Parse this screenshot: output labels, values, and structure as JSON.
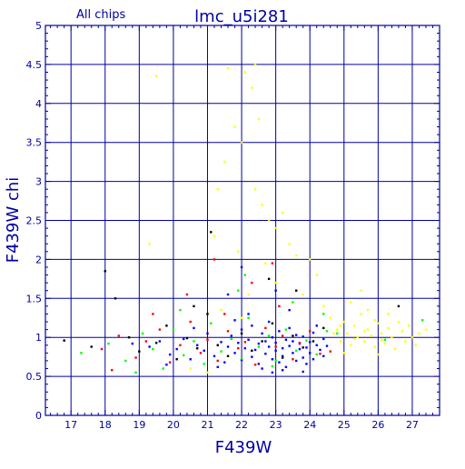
{
  "chart_data": {
    "type": "scatter",
    "title": "lmc_u5i281",
    "subtitle": "All chips",
    "xlabel": "F439W",
    "ylabel": "F439W chi",
    "xlim": [
      16.25,
      27.8
    ],
    "ylim": [
      0,
      5
    ],
    "xticks": [
      17,
      18,
      19,
      20,
      21,
      22,
      23,
      24,
      25,
      26,
      27
    ],
    "yticks": [
      0,
      0.5,
      1,
      1.5,
      2,
      2.5,
      3,
      3.5,
      4,
      4.5,
      5
    ],
    "ytick_labels": [
      "0",
      "0.5",
      "1",
      "1.5",
      "2",
      "2.5",
      "3",
      "3.5",
      "4",
      "4.5",
      "5"
    ],
    "grid": true,
    "series": [
      {
        "color": "#0000ff",
        "points": [
          [
            18.8,
            0.92
          ],
          [
            19.3,
            0.88
          ],
          [
            19.6,
            0.95
          ],
          [
            19.9,
            0.78
          ],
          [
            20.1,
            0.85
          ],
          [
            20.3,
            0.98
          ],
          [
            20.5,
            0.72
          ],
          [
            20.7,
            0.9
          ],
          [
            20.9,
            0.83
          ],
          [
            21.0,
            1.05
          ],
          [
            21.2,
            0.76
          ],
          [
            21.4,
            0.94
          ],
          [
            21.5,
            0.68
          ],
          [
            21.6,
            0.88
          ],
          [
            21.7,
            1.02
          ],
          [
            21.8,
            0.8
          ],
          [
            21.9,
            0.93
          ],
          [
            22.0,
            0.71
          ],
          [
            22.0,
            1.1
          ],
          [
            22.1,
            0.86
          ],
          [
            22.2,
            0.97
          ],
          [
            22.3,
            0.75
          ],
          [
            22.3,
            1.15
          ],
          [
            22.4,
            0.84
          ],
          [
            22.5,
            0.92
          ],
          [
            22.5,
            0.66
          ],
          [
            22.6,
            1.05
          ],
          [
            22.7,
            0.79
          ],
          [
            22.7,
            0.95
          ],
          [
            22.8,
            0.88
          ],
          [
            22.8,
            1.2
          ],
          [
            22.9,
            0.72
          ],
          [
            22.9,
            1.0
          ],
          [
            23.0,
            0.83
          ],
          [
            23.0,
            0.93
          ],
          [
            23.1,
            0.68
          ],
          [
            23.1,
            1.08
          ],
          [
            23.2,
            0.86
          ],
          [
            23.2,
            0.76
          ],
          [
            23.3,
            0.97
          ],
          [
            23.3,
            0.62
          ],
          [
            23.4,
            0.89
          ],
          [
            23.4,
            1.12
          ],
          [
            23.5,
            0.8
          ],
          [
            23.5,
            0.95
          ],
          [
            23.6,
            0.7
          ],
          [
            23.6,
            1.03
          ],
          [
            23.7,
            0.85
          ],
          [
            23.7,
            0.92
          ],
          [
            23.8,
            0.74
          ],
          [
            23.8,
            1.01
          ],
          [
            23.9,
            0.87
          ],
          [
            23.9,
            0.66
          ],
          [
            24.0,
            0.94
          ],
          [
            24.0,
            0.8
          ],
          [
            24.1,
            1.06
          ],
          [
            24.1,
            0.72
          ],
          [
            24.2,
            0.9
          ],
          [
            24.3,
            0.84
          ],
          [
            24.4,
            0.98
          ],
          [
            24.4,
            0.76
          ],
          [
            24.5,
            0.89
          ],
          [
            22.6,
            0.6
          ],
          [
            23.2,
            0.58
          ],
          [
            23.8,
            0.56
          ],
          [
            22.2,
            1.3
          ],
          [
            23.4,
            1.35
          ],
          [
            21.8,
            1.22
          ],
          [
            24.2,
            1.15
          ],
          [
            22.9,
            0.55
          ],
          [
            20.6,
            1.12
          ],
          [
            19.8,
            0.65
          ],
          [
            21.3,
            0.62
          ],
          [
            23.0,
            1.6
          ],
          [
            22.0,
            1.9
          ],
          [
            21.6,
            1.55
          ]
        ]
      },
      {
        "color": "#00ff00",
        "points": [
          [
            17.3,
            0.8
          ],
          [
            18.1,
            0.92
          ],
          [
            18.6,
            0.7
          ],
          [
            19.1,
            1.05
          ],
          [
            19.4,
            0.85
          ],
          [
            19.7,
            0.6
          ],
          [
            20.0,
            1.1
          ],
          [
            20.3,
            0.77
          ],
          [
            20.6,
            0.95
          ],
          [
            20.9,
            0.66
          ],
          [
            21.1,
            1.18
          ],
          [
            21.4,
            0.82
          ],
          [
            21.7,
            0.98
          ],
          [
            22.0,
            0.73
          ],
          [
            22.2,
            1.25
          ],
          [
            22.5,
            0.88
          ],
          [
            22.8,
            1.02
          ],
          [
            23.0,
            0.7
          ],
          [
            23.3,
            1.1
          ],
          [
            23.6,
            0.83
          ],
          [
            23.9,
            0.96
          ],
          [
            24.2,
            0.78
          ],
          [
            24.5,
            1.08
          ],
          [
            22.1,
            1.8
          ],
          [
            23.5,
            1.45
          ],
          [
            20.2,
            1.35
          ],
          [
            21.9,
            1.6
          ],
          [
            18.9,
            0.55
          ],
          [
            24.4,
            1.3
          ],
          [
            22.9,
            0.63
          ],
          [
            24.8,
            1.05
          ],
          [
            26.2,
            0.97
          ],
          [
            27.3,
            1.22
          ]
        ]
      },
      {
        "color": "#ff0000",
        "points": [
          [
            17.9,
            0.85
          ],
          [
            18.4,
            1.02
          ],
          [
            18.9,
            0.74
          ],
          [
            19.2,
            0.95
          ],
          [
            19.6,
            1.1
          ],
          [
            19.9,
            0.68
          ],
          [
            20.2,
            0.9
          ],
          [
            20.5,
            1.2
          ],
          [
            20.8,
            0.8
          ],
          [
            21.0,
            0.97
          ],
          [
            21.3,
            0.7
          ],
          [
            21.6,
            1.08
          ],
          [
            21.9,
            0.86
          ],
          [
            22.1,
            0.94
          ],
          [
            22.4,
            0.65
          ],
          [
            22.7,
            1.12
          ],
          [
            23.0,
            0.88
          ],
          [
            23.2,
            1.02
          ],
          [
            23.5,
            0.72
          ],
          [
            23.7,
            0.93
          ],
          [
            24.0,
            1.08
          ],
          [
            24.3,
            0.79
          ],
          [
            22.3,
            1.7
          ],
          [
            23.1,
            1.4
          ],
          [
            21.5,
            1.3
          ],
          [
            20.4,
            1.55
          ],
          [
            18.2,
            0.58
          ],
          [
            19.4,
            1.3
          ],
          [
            24.6,
            0.82
          ],
          [
            22.9,
            1.95
          ],
          [
            21.2,
            2.0
          ]
        ]
      },
      {
        "color": "#000000",
        "points": [
          [
            16.8,
            0.96
          ],
          [
            17.6,
            0.88
          ],
          [
            18.3,
            1.5
          ],
          [
            18.0,
            1.85
          ],
          [
            18.7,
            1.0
          ],
          [
            19.0,
            0.82
          ],
          [
            19.5,
            0.93
          ],
          [
            19.8,
            1.15
          ],
          [
            20.1,
            0.72
          ],
          [
            20.4,
            0.99
          ],
          [
            20.7,
            0.86
          ],
          [
            21.0,
            1.3
          ],
          [
            21.3,
            0.9
          ],
          [
            21.6,
            0.76
          ],
          [
            22.0,
            1.05
          ],
          [
            22.3,
            0.83
          ],
          [
            22.6,
            0.95
          ],
          [
            22.9,
            1.18
          ],
          [
            23.2,
            0.74
          ],
          [
            23.5,
            1.02
          ],
          [
            23.8,
            0.87
          ],
          [
            24.1,
            0.95
          ],
          [
            24.4,
            1.12
          ],
          [
            21.1,
            2.35
          ],
          [
            22.8,
            1.75
          ],
          [
            23.6,
            1.6
          ],
          [
            20.6,
            1.4
          ],
          [
            26.6,
            1.4
          ]
        ]
      },
      {
        "color": "#ffff00",
        "points": [
          [
            19.5,
            4.35
          ],
          [
            19.3,
            2.2
          ],
          [
            21.3,
            2.9
          ],
          [
            21.6,
            4.45
          ],
          [
            21.8,
            3.7
          ],
          [
            21.5,
            3.25
          ],
          [
            22.0,
            3.5
          ],
          [
            22.1,
            4.4
          ],
          [
            22.3,
            4.2
          ],
          [
            22.4,
            4.5
          ],
          [
            22.5,
            3.8
          ],
          [
            22.6,
            2.7
          ],
          [
            22.8,
            2.5
          ],
          [
            23.0,
            2.4
          ],
          [
            23.2,
            2.6
          ],
          [
            21.2,
            2.3
          ],
          [
            21.9,
            2.1
          ],
          [
            22.4,
            2.9
          ],
          [
            23.4,
            2.2
          ],
          [
            22.7,
            1.95
          ],
          [
            23.6,
            2.05
          ],
          [
            24.0,
            2.0
          ],
          [
            24.2,
            1.8
          ],
          [
            22.2,
            1.55
          ],
          [
            23.0,
            1.7
          ],
          [
            23.8,
            1.55
          ],
          [
            24.4,
            1.4
          ],
          [
            24.6,
            1.25
          ],
          [
            24.8,
            1.1
          ],
          [
            24.9,
            0.95
          ],
          [
            25.0,
            1.2
          ],
          [
            25.1,
            1.05
          ],
          [
            25.2,
            0.9
          ],
          [
            25.3,
            1.15
          ],
          [
            25.4,
            1.0
          ],
          [
            25.5,
            1.3
          ],
          [
            25.6,
            0.95
          ],
          [
            25.7,
            1.1
          ],
          [
            25.8,
            1.02
          ],
          [
            25.9,
            0.88
          ],
          [
            26.0,
            1.18
          ],
          [
            26.1,
            1.05
          ],
          [
            26.2,
            0.92
          ],
          [
            26.3,
            1.12
          ],
          [
            26.4,
            1.0
          ],
          [
            26.5,
            0.85
          ],
          [
            26.6,
            1.2
          ],
          [
            26.7,
            1.08
          ],
          [
            26.8,
            0.95
          ],
          [
            26.9,
            1.15
          ],
          [
            27.0,
            1.0
          ],
          [
            27.1,
            0.9
          ],
          [
            27.2,
            1.05
          ],
          [
            27.4,
            1.1
          ],
          [
            25.2,
            1.45
          ],
          [
            25.5,
            1.6
          ],
          [
            25.0,
            0.8
          ],
          [
            26.0,
            0.78
          ],
          [
            25.7,
            1.35
          ],
          [
            26.3,
            1.3
          ],
          [
            24.7,
            1.05
          ],
          [
            25.3,
            0.98
          ],
          [
            25.6,
            1.08
          ],
          [
            25.9,
            1.22
          ],
          [
            26.1,
            0.97
          ],
          [
            24.9,
            1.15
          ],
          [
            21.0,
            0.55
          ],
          [
            20.5,
            0.6
          ],
          [
            22.0,
            1.25
          ],
          [
            21.4,
            1.35
          ]
        ]
      }
    ]
  }
}
